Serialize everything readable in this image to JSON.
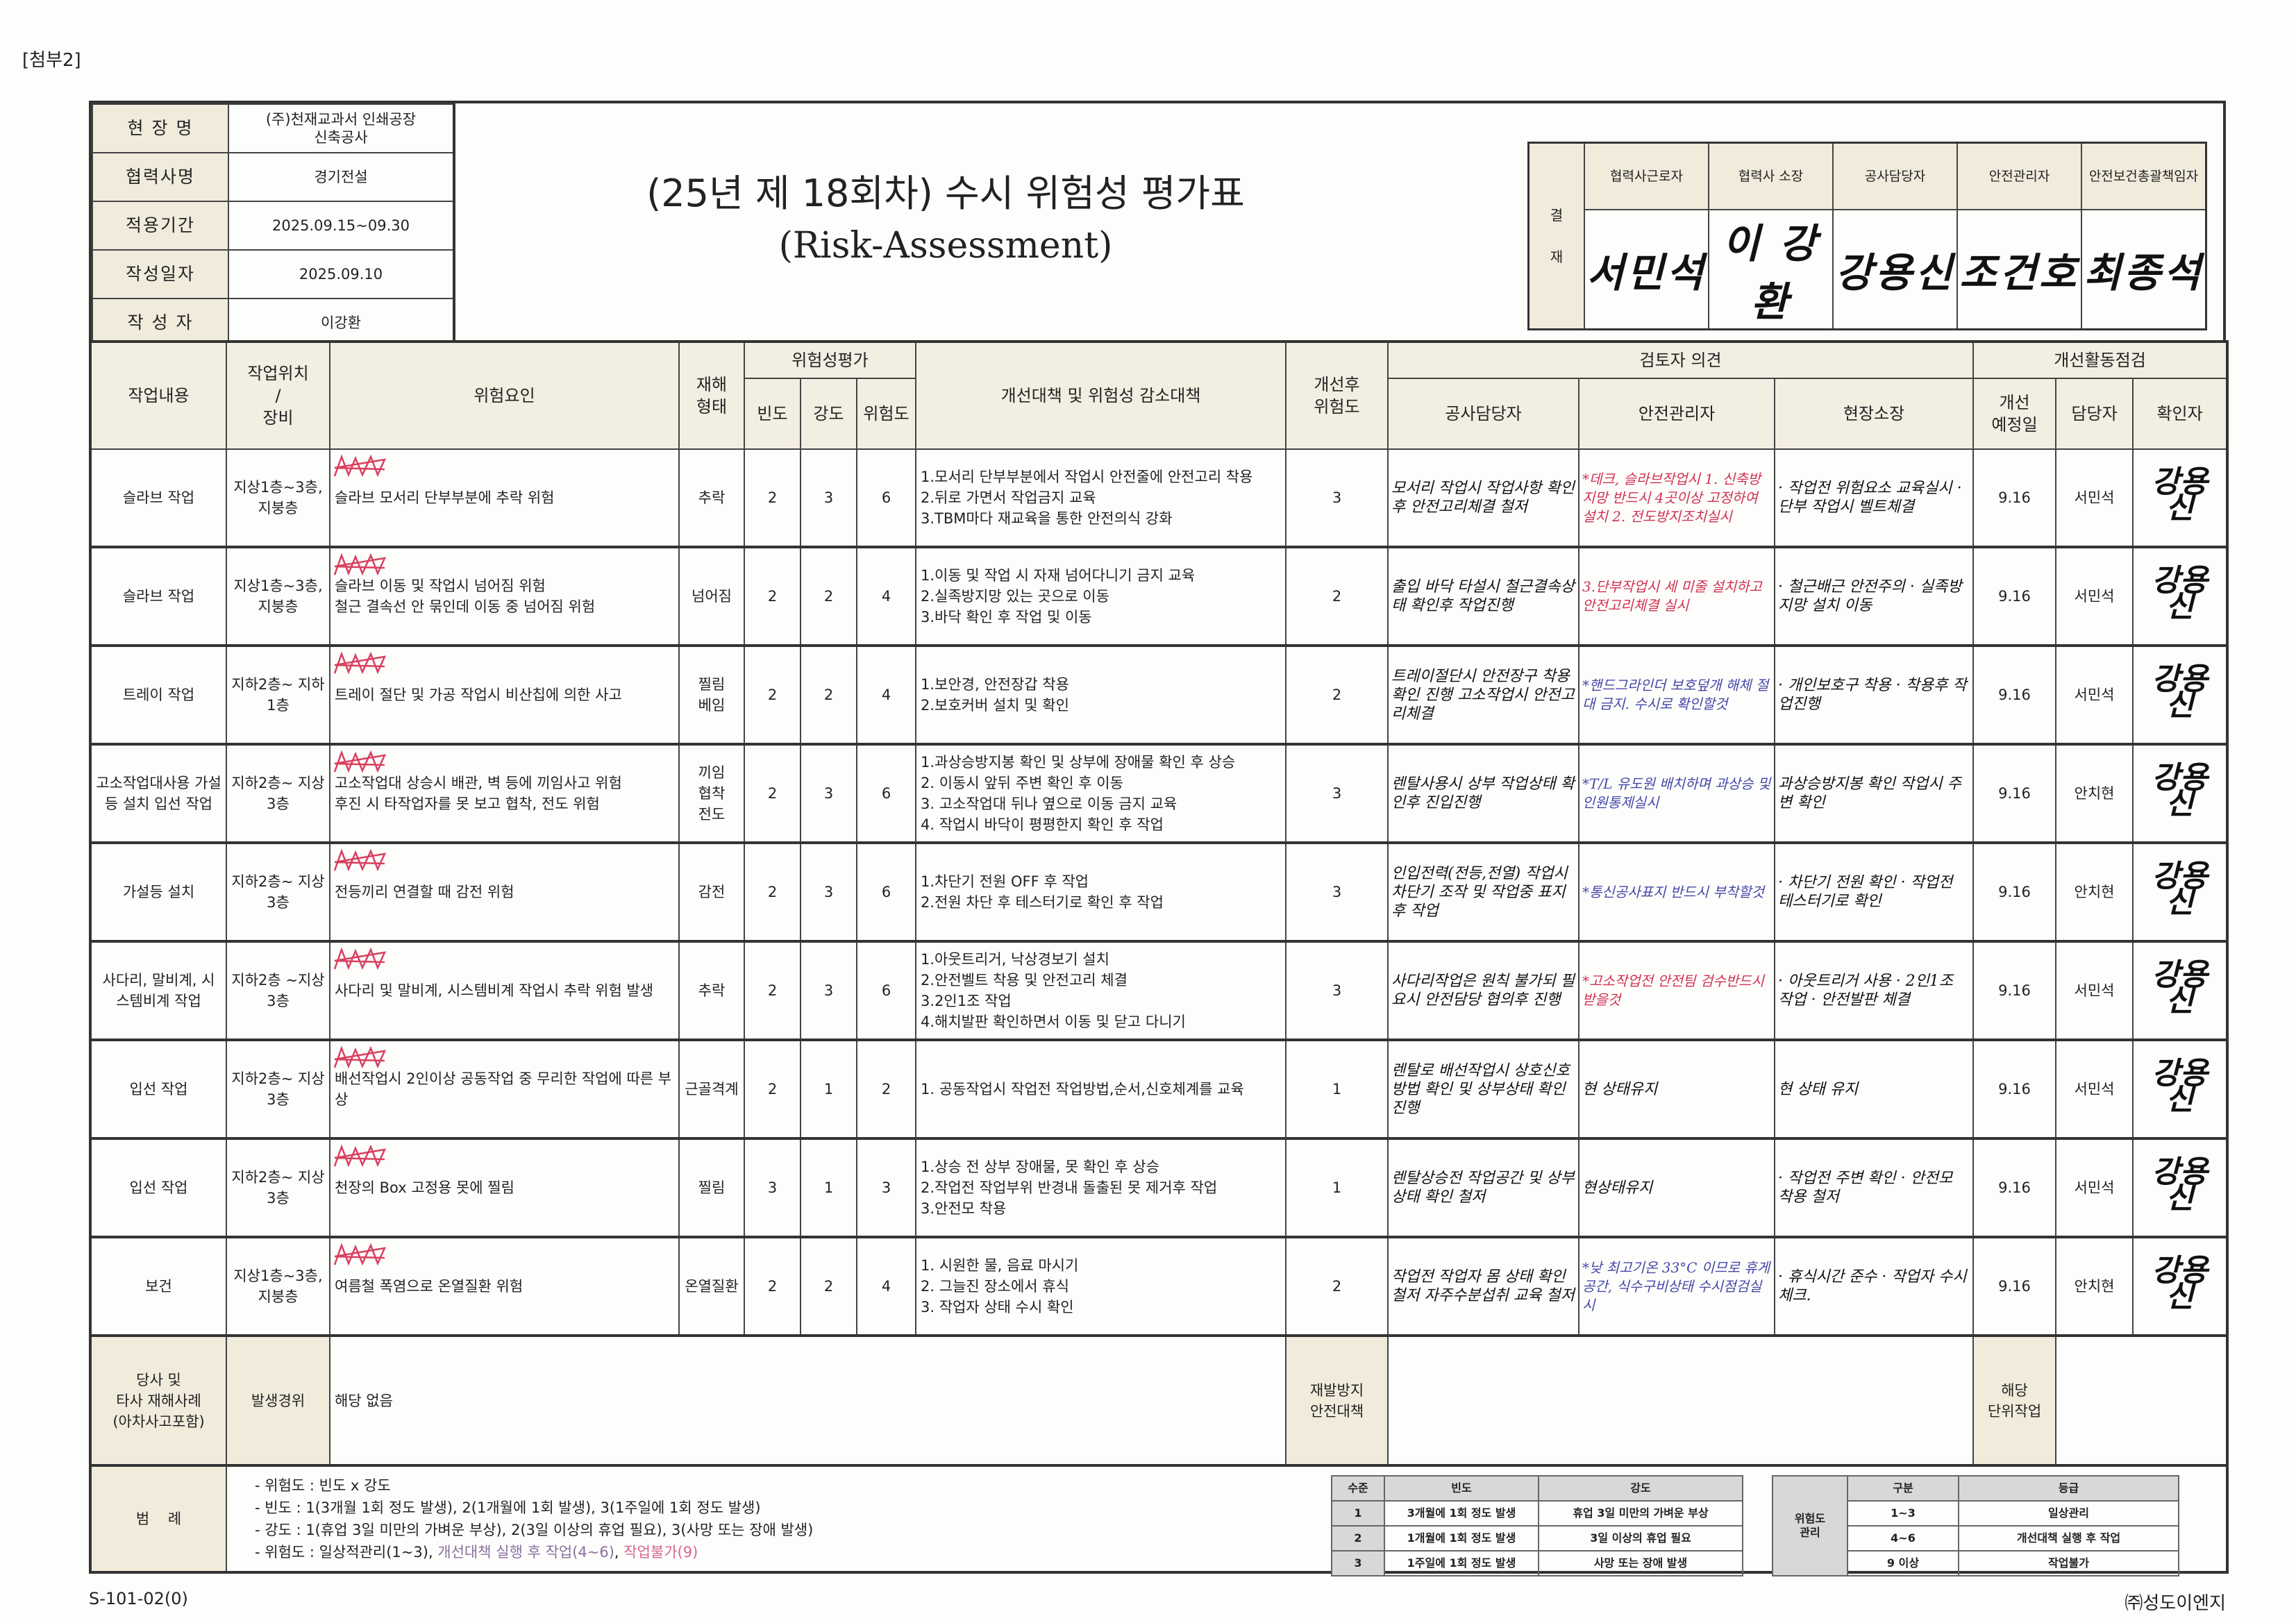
{
  "attachment_label": "[첨부2]",
  "info": [
    {
      "label": "현 장 명",
      "value": "(주)천재교과서 인쇄공장\n신축공사"
    },
    {
      "label": "협력사명",
      "value": "경기전설"
    },
    {
      "label": "적용기간",
      "value": "2025.09.15~09.30"
    },
    {
      "label": "작성일자",
      "value": "2025.09.10"
    },
    {
      "label": "작 성 자",
      "value": "이강환"
    }
  ],
  "title": {
    "line1": "(25년 제 18회차) 수시 위험성 평가표",
    "line2": "(Risk-Assessment)"
  },
  "approval": {
    "side_label_1": "결",
    "side_label_2": "재",
    "roles": [
      "협력사근로자",
      "협력사 소장",
      "공사담당자",
      "안전관리자",
      "안전보건총괄책임자"
    ],
    "signatures": [
      "서민석",
      "이 강환",
      "강용신",
      "조건호",
      "최종석"
    ]
  },
  "headers": {
    "work": "작업내용",
    "location": "작업위치\n/\n장비",
    "hazard": "위험요인",
    "type": "재해\n형태",
    "assessment": "위험성평가",
    "freq": "빈도",
    "severity": "강도",
    "risk": "위험도",
    "measures": "개선대책 및 위험성 감소대책",
    "after": "개선후\n위험도",
    "review": "검토자 의견",
    "rev_construction": "공사담당자",
    "rev_safety": "안전관리자",
    "rev_site": "현장소장",
    "activity": "개선활동점검",
    "planned": "개선\n예정일",
    "owner": "담당자",
    "confirmer": "확인자"
  },
  "rows": [
    {
      "work": "슬라브 작업",
      "location": "지상1층~3층, 지붕층",
      "hazard": [
        "슬라브 모서리 단부부분에 추락 위험"
      ],
      "type": "추락",
      "freq": 2,
      "severity": 3,
      "risk": 6,
      "measures": [
        "1.모서리 단부부분에서 작업시 안전줄에 안전고리 착용",
        "2.뒤로 가면서 작업금지 교육",
        "3.TBM마다 재교육을 통한 안전의식 강화"
      ],
      "after": 3,
      "construction": "모서리 작업시 작업사항 확인후 안전고리체결 철저",
      "safety": "*데크, 슬라브작업시 1. 신축방지망 반드시 4곳이상 고정하여 설치 2. 전도방지조치실시",
      "safety_color": "red",
      "site": "· 작업전 위험요소 교육실시 · 단부 작업시 벨트체결",
      "date": "9.16",
      "owner": "서민석",
      "confirmer": "강용신"
    },
    {
      "work": "슬라브 작업",
      "location": "지상1층~3층, 지붕층",
      "hazard": [
        "슬라브 이동 및 작업시 넘어짐 위험",
        "철근 결속선 안 묶인데 이동 중 넘어짐 위험"
      ],
      "type": "넘어짐",
      "freq": 2,
      "severity": 2,
      "risk": 4,
      "measures": [
        "1.이동 및 작업 시 자재 넘어다니기 금지 교육",
        "2.실족방지망 있는 곳으로 이동",
        "3.바닥 확인 후 작업 및 이동"
      ],
      "after": 2,
      "construction": "출입 바닥 타설시 철근결속상태 확인후 작업진행",
      "safety": "3.단부작업시 세 미줄 설치하고 안전고리체결 실시",
      "safety_color": "red",
      "site": "· 철근배근 안전주의 · 실족방지망 설치 이동",
      "date": "9.16",
      "owner": "서민석",
      "confirmer": "강용신"
    },
    {
      "work": "트레이 작업",
      "location": "지하2층~ 지하1층",
      "hazard": [
        "트레이 절단 및 가공 작업시 비산칩에 의한 사고"
      ],
      "type": "찔림\n베임",
      "freq": 2,
      "severity": 2,
      "risk": 4,
      "measures": [
        "1.보안경, 안전장갑 착용",
        "2.보호커버 설치 및 확인"
      ],
      "after": 2,
      "construction": "트레이절단시 안전장구 착용확인 진행 고소작업시 안전고리체결",
      "safety": "*핸드그라인더 보호덮개 해체 절대 금지. 수시로 확인할것",
      "safety_color": "blue",
      "site": "· 개인보호구 착용 · 착용후 작업진행",
      "date": "9.16",
      "owner": "서민석",
      "confirmer": "강용신"
    },
    {
      "work": "고소작업대사용 가설등 설치 입선 작업",
      "location": "지하2층~ 지상3층",
      "hazard": [
        "고소작업대 상승시 배관, 벽 등에 끼임사고 위험",
        "후진 시 타작업자를 못 보고 협착, 전도 위험"
      ],
      "type": "끼임\n협착\n전도",
      "freq": 2,
      "severity": 3,
      "risk": 6,
      "measures": [
        "1.과상승방지봉 확인 및 상부에 장애물 확인 후 상승",
        "2. 이동시 앞뒤 주변 확인 후 이동",
        "3. 고소작업대 뒤나 옆으로 이동 금지 교육",
        "4. 작업시 바닥이 평평한지 확인 후 작업"
      ],
      "after": 3,
      "construction": "렌탈사용시 상부 작업상태 확인후 진입진행",
      "safety": "*T/L 유도원 배치하며 과상승 및 인원통제실시",
      "safety_color": "blue",
      "site": "과상승방지봉 확인 작업시 주변 확인",
      "date": "9.16",
      "owner": "안치현",
      "confirmer": "강용신"
    },
    {
      "work": "가설등 설치",
      "location": "지하2층~ 지상3층",
      "hazard": [
        "전등끼리 연결할 때 감전 위험"
      ],
      "type": "감전",
      "freq": 2,
      "severity": 3,
      "risk": 6,
      "measures": [
        "1.차단기 전원 OFF 후 작업",
        "2.전원 차단 후 테스터기로 확인 후 작업"
      ],
      "after": 3,
      "construction": "인입전력(전등,전열) 작업시 차단기 조작 및 작업중 표지 후 작업",
      "safety": "*통신공사표지 반드시 부착할것",
      "safety_color": "blue",
      "site": "· 차단기 전원 확인 · 작업전 테스터기로 확인",
      "date": "9.16",
      "owner": "안치현",
      "confirmer": "강용신"
    },
    {
      "work": "사다리, 말비계, 시스템비계 작업",
      "location": "지하2층 ~지상3층",
      "hazard": [
        "사다리 및 말비계, 시스템비계 작업시 추락 위험 발생"
      ],
      "type": "추락",
      "freq": 2,
      "severity": 3,
      "risk": 6,
      "measures": [
        "1.아웃트리거, 낙상경보기 설치",
        "2.안전벨트 착용 및 안전고리 체결",
        "3.2인1조 작업",
        "4.해치발판 확인하면서 이동 및 닫고 다니기"
      ],
      "after": 3,
      "construction": "사다리작업은 원칙 불가되 필요시 안전담당 협의후 진행",
      "safety": "*고소작업전 안전팀 검수반드시 받을것",
      "safety_color": "red",
      "site": "· 아웃트리거 사용 · 2인1조 작업 · 안전발판 체결",
      "date": "9.16",
      "owner": "서민석",
      "confirmer": "강용신"
    },
    {
      "work": "입선 작업",
      "location": "지하2층~ 지상3층",
      "hazard": [
        "배선작업시 2인이상 공동작업 중 무리한 작업에 따른 부상"
      ],
      "type": "근골격계",
      "freq": 2,
      "severity": 1,
      "risk": 2,
      "measures": [
        "1. 공동작업시 작업전 작업방법,순서,신호체계를 교육"
      ],
      "after": 1,
      "construction": "렌탈로 배선작업시 상호신호 방법 확인 및 상부상태 확인 진행",
      "safety": "현 상태유지",
      "safety_color": "black",
      "site": "현 상태 유지",
      "date": "9.16",
      "owner": "서민석",
      "confirmer": "강용신"
    },
    {
      "work": "입선 작업",
      "location": "지하2층~ 지상3층",
      "hazard": [
        "천장의 Box 고정용 못에 찔림"
      ],
      "type": "찔림",
      "freq": 3,
      "severity": 1,
      "risk": 3,
      "measures": [
        "1.상승 전 상부 장애물, 못 확인 후 상승",
        "2.작업전 작업부위 반경내 돌출된 못 제거후 작업",
        "3.안전모 착용"
      ],
      "after": 1,
      "construction": "렌탈상승전 작업공간 및 상부상태 확인 철저",
      "safety": "현상태유지",
      "safety_color": "black",
      "site": "· 작업전 주변 확인 · 안전모 착용 철저",
      "date": "9.16",
      "owner": "서민석",
      "confirmer": "강용신"
    },
    {
      "work": "보건",
      "location": "지상1층~3층, 지붕층",
      "hazard": [
        "여름철 폭염으로 온열질환 위험"
      ],
      "type": "온열질환",
      "freq": 2,
      "severity": 2,
      "risk": 4,
      "measures": [
        "1. 시원한 물, 음료 마시기",
        "2. 그늘진 장소에서 휴식",
        "3. 작업자 상태 수시 확인"
      ],
      "after": 2,
      "construction": "작업전 작업자 몸 상태 확인 철저 자주수분섭취 교육 철저",
      "safety": "*낮 최고기온 33°C 이므로 휴게공간, 식수구비상태 수시점검실시",
      "safety_color": "blue",
      "site": "· 휴식시간 준수 · 작업자 수시 체크.",
      "date": "9.16",
      "owner": "안치현",
      "confirmer": "강용신"
    }
  ],
  "incident": {
    "label": "당사 및\n타사 재해사례\n(아차사고포함)",
    "cause_label": "발생경위",
    "cause_value": "해당 없음",
    "prevention_label": "재발방지\n안전대책",
    "prevention_value": "",
    "unit_label": "해당\n단위작업",
    "unit_value": ""
  },
  "legend": {
    "label": "범    례",
    "lines": [
      "- 위험도 : 빈도 x 강도",
      "- 빈도 : 1(3개월 1회 정도 발생), 2(1개월에 1회 발생), 3(1주일에 1회 정도 발생)",
      "- 강도 : 1(휴업 3일 미만의 가벼운 부상), 2(3일 이상의 휴업 필요), 3(사망 또는 장애 발생)"
    ],
    "last_prefix": "- 위험도 : 일상적관리(1~3), ",
    "last_mid": "개선대책 실행 후 작업(4~6)",
    "last_sep": ", ",
    "last_end": "작업불가(9)",
    "scale_table": {
      "headers": [
        "수준",
        "빈도",
        "강도"
      ],
      "rows": [
        [
          "1",
          "3개월에 1회 정도 발생",
          "휴업 3일 미만의 가벼운 부상"
        ],
        [
          "2",
          "1개월에 1회 정도 발생",
          "3일 이상의 휴업 필요"
        ],
        [
          "3",
          "1주일에 1회 정도 발생",
          "사망 또는 장애 발생"
        ]
      ]
    },
    "grade_table": {
      "side": "위험도\n관리",
      "headers": [
        "구분",
        "등급"
      ],
      "rows": [
        [
          "1~3",
          "일상관리"
        ],
        [
          "4~6",
          "개선대책 실행 후 작업"
        ],
        [
          "9 이상",
          "작업불가"
        ]
      ]
    }
  },
  "footer": {
    "code": "S-101-02(0)",
    "company": "㈜성도이엔지"
  },
  "colors": {
    "red_pen": "#d2304f",
    "blue_pen": "#4548a8",
    "header_bg": "#f3eee2",
    "x_mark": "#d8405e"
  }
}
